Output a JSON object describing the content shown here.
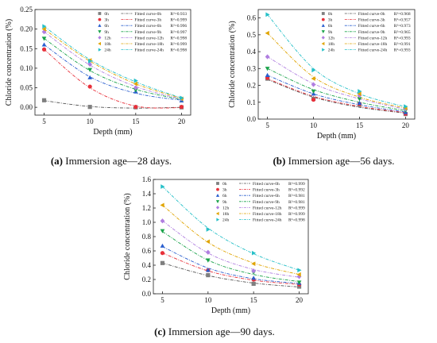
{
  "chart_data": [
    {
      "type": "scatter",
      "caption": {
        "label": "(a)",
        "text": "Immersion age—28 days."
      },
      "xlabel": "Depth (mm)",
      "ylabel": "Chloride concentration (%)",
      "x": [
        5,
        10,
        15,
        20
      ],
      "xlim": [
        4,
        21
      ],
      "ylim": [
        -0.02,
        0.25
      ],
      "yticks": [
        "0.00",
        "0.05",
        "0.10",
        "0.15",
        "0.20",
        "0.25"
      ],
      "yticks_values": [
        0,
        0.05,
        0.1,
        0.15,
        0.2,
        0.25
      ],
      "xticks": [
        "5",
        "10",
        "15",
        "20"
      ],
      "grid": false,
      "legend_position": "top-right",
      "series": [
        {
          "name": "0h",
          "marker": "square",
          "color": "#7f7f7f",
          "values": [
            0.018,
            0.001,
            0.0,
            0.0
          ]
        },
        {
          "name": "3h",
          "marker": "circle",
          "color": "#e8303a",
          "values": [
            0.148,
            0.053,
            0.001,
            0.001
          ]
        },
        {
          "name": "6h",
          "marker": "triangle-up",
          "color": "#2a5fcf",
          "values": [
            0.16,
            0.076,
            0.04,
            0.017
          ]
        },
        {
          "name": "9h",
          "marker": "triangle-down",
          "color": "#1aa34a",
          "values": [
            0.176,
            0.096,
            0.044,
            0.02
          ]
        },
        {
          "name": "12h",
          "marker": "diamond",
          "color": "#b07ee0",
          "values": [
            0.193,
            0.11,
            0.05,
            0.022
          ]
        },
        {
          "name": "18h",
          "marker": "triangle-left",
          "color": "#e0a400",
          "values": [
            0.2,
            0.12,
            0.06,
            0.022
          ]
        },
        {
          "name": "24h",
          "marker": "triangle-right",
          "color": "#26c0c8",
          "values": [
            0.207,
            0.118,
            0.068,
            0.024
          ]
        }
      ],
      "fits": [
        {
          "label": "Fitted curve-0h",
          "r2": "R²=0.933",
          "color": "#555555",
          "values": [
            0.017,
            0.002,
            -0.002,
            0.0
          ]
        },
        {
          "label": "Fitted curve-3h",
          "r2": "R²=0.999",
          "color": "#e8303a",
          "values": [
            0.148,
            0.05,
            0.003,
            -0.001
          ]
        },
        {
          "label": "Fitted curve-6h",
          "r2": "R²=0.996",
          "color": "#2a5fcf",
          "values": [
            0.16,
            0.078,
            0.036,
            0.018
          ]
        },
        {
          "label": "Fitted curve-9h",
          "r2": "R²=0.997",
          "color": "#1aa34a",
          "values": [
            0.176,
            0.094,
            0.046,
            0.02
          ]
        },
        {
          "label": "Fitted curve-12h",
          "r2": "R²=0.998",
          "color": "#b07ee0",
          "values": [
            0.193,
            0.108,
            0.053,
            0.021
          ]
        },
        {
          "label": "Fitted curve-18h",
          "r2": "R²=0.999",
          "color": "#e0a400",
          "values": [
            0.2,
            0.118,
            0.06,
            0.023
          ]
        },
        {
          "label": "Fitted curve-24h",
          "r2": "R²=0.998",
          "color": "#26c0c8",
          "values": [
            0.207,
            0.122,
            0.065,
            0.024
          ]
        }
      ]
    },
    {
      "type": "scatter",
      "caption": {
        "label": "(b)",
        "text": "Immersion age—56 days."
      },
      "xlabel": "Depth (mm)",
      "ylabel": "Chloride concentration (%)",
      "x": [
        5,
        10,
        15,
        20
      ],
      "xlim": [
        4,
        21
      ],
      "ylim": [
        0.0,
        0.65
      ],
      "yticks": [
        "0.0",
        "0.1",
        "0.2",
        "0.3",
        "0.4",
        "0.5",
        "0.6"
      ],
      "yticks_values": [
        0,
        0.1,
        0.2,
        0.3,
        0.4,
        0.5,
        0.6
      ],
      "xticks": [
        "5",
        "10",
        "15",
        "20"
      ],
      "grid": false,
      "legend_position": "top-right",
      "series": [
        {
          "name": "0h",
          "marker": "square",
          "color": "#7f7f7f",
          "values": [
            0.24,
            0.12,
            0.085,
            0.03
          ]
        },
        {
          "name": "3h",
          "marker": "circle",
          "color": "#e8303a",
          "values": [
            0.245,
            0.115,
            0.09,
            0.032
          ]
        },
        {
          "name": "6h",
          "marker": "triangle-up",
          "color": "#2a5fcf",
          "values": [
            0.26,
            0.15,
            0.095,
            0.04
          ]
        },
        {
          "name": "9h",
          "marker": "triangle-down",
          "color": "#1aa34a",
          "values": [
            0.3,
            0.165,
            0.12,
            0.05
          ]
        },
        {
          "name": "12h",
          "marker": "diamond",
          "color": "#b07ee0",
          "values": [
            0.37,
            0.205,
            0.14,
            0.06
          ]
        },
        {
          "name": "18h",
          "marker": "triangle-left",
          "color": "#e0a400",
          "values": [
            0.51,
            0.24,
            0.15,
            0.065
          ]
        },
        {
          "name": "24h",
          "marker": "triangle-right",
          "color": "#26c0c8",
          "values": [
            0.62,
            0.29,
            0.165,
            0.075
          ]
        }
      ],
      "fits": [
        {
          "label": "Fitted curve-0h",
          "r2": "R²=0.968",
          "color": "#555555",
          "values": [
            0.235,
            0.13,
            0.07,
            0.035
          ]
        },
        {
          "label": "Fitted curve-3h",
          "r2": "R²=0.957",
          "color": "#e8303a",
          "values": [
            0.24,
            0.135,
            0.075,
            0.038
          ]
        },
        {
          "label": "Fitted curve-6h",
          "r2": "R²=0.973",
          "color": "#2a5fcf",
          "values": [
            0.26,
            0.15,
            0.085,
            0.042
          ]
        },
        {
          "label": "Fitted curve-9h",
          "r2": "R²=0.965",
          "color": "#1aa34a",
          "values": [
            0.3,
            0.175,
            0.1,
            0.05
          ]
        },
        {
          "label": "Fitted curve-12h",
          "r2": "R²=0.993",
          "color": "#b07ee0",
          "values": [
            0.37,
            0.21,
            0.12,
            0.058
          ]
        },
        {
          "label": "Fitted curve-18h",
          "r2": "R²=0.991",
          "color": "#e0a400",
          "values": [
            0.51,
            0.25,
            0.13,
            0.065
          ]
        },
        {
          "label": "Fitted curve-24h",
          "r2": "R²=0.993",
          "color": "#26c0c8",
          "values": [
            0.62,
            0.3,
            0.15,
            0.073
          ]
        }
      ]
    },
    {
      "type": "scatter",
      "caption": {
        "label": "(c)",
        "text": "Immersion age—90 days."
      },
      "xlabel": "Depth (mm)",
      "ylabel": "Chloride concentration (%)",
      "x": [
        5,
        10,
        15,
        20
      ],
      "xlim": [
        4,
        21
      ],
      "ylim": [
        0.0,
        1.6
      ],
      "yticks": [
        "0.0",
        "0.2",
        "0.4",
        "0.6",
        "0.8",
        "1.0",
        "1.2",
        "1.4",
        "1.6"
      ],
      "yticks_values": [
        0,
        0.2,
        0.4,
        0.6,
        0.8,
        1.0,
        1.2,
        1.4,
        1.6
      ],
      "xticks": [
        "5",
        "10",
        "15",
        "20"
      ],
      "grid": false,
      "legend_position": "top-right",
      "series": [
        {
          "name": "0h",
          "marker": "square",
          "color": "#7f7f7f",
          "values": [
            0.43,
            0.26,
            0.14,
            0.1
          ]
        },
        {
          "name": "3h",
          "marker": "circle",
          "color": "#e8303a",
          "values": [
            0.57,
            0.33,
            0.2,
            0.13
          ]
        },
        {
          "name": "6h",
          "marker": "triangle-up",
          "color": "#2a5fcf",
          "values": [
            0.67,
            0.33,
            0.22,
            0.15
          ]
        },
        {
          "name": "9h",
          "marker": "triangle-down",
          "color": "#1aa34a",
          "values": [
            0.88,
            0.47,
            0.3,
            0.16
          ]
        },
        {
          "name": "12h",
          "marker": "diamond",
          "color": "#b07ee0",
          "values": [
            1.02,
            0.58,
            0.32,
            0.24
          ]
        },
        {
          "name": "18h",
          "marker": "triangle-left",
          "color": "#e0a400",
          "values": [
            1.24,
            0.73,
            0.42,
            0.27
          ]
        },
        {
          "name": "24h",
          "marker": "triangle-right",
          "color": "#26c0c8",
          "values": [
            1.5,
            0.9,
            0.57,
            0.33
          ]
        }
      ],
      "fits": [
        {
          "label": "Fitted curve-0h",
          "r2": "R²=0.999",
          "color": "#555555",
          "values": [
            0.43,
            0.255,
            0.15,
            0.095
          ]
        },
        {
          "label": "Fitted curve-3h",
          "r2": "R²=0.992",
          "color": "#e8303a",
          "values": [
            0.57,
            0.32,
            0.19,
            0.13
          ]
        },
        {
          "label": "Fitted curve-6h",
          "r2": "R²=0.981",
          "color": "#2a5fcf",
          "values": [
            0.66,
            0.36,
            0.21,
            0.145
          ]
        },
        {
          "label": "Fitted curve-9h",
          "r2": "R²=0.981",
          "color": "#1aa34a",
          "values": [
            0.87,
            0.47,
            0.27,
            0.17
          ]
        },
        {
          "label": "Fitted curve-12h",
          "r2": "R²=0.999",
          "color": "#b07ee0",
          "values": [
            1.02,
            0.57,
            0.34,
            0.23
          ]
        },
        {
          "label": "Fitted curve-18h",
          "r2": "R²=0.999",
          "color": "#e0a400",
          "values": [
            1.24,
            0.72,
            0.43,
            0.27
          ]
        },
        {
          "label": "Fitted curve-24h",
          "r2": "R²=0.998",
          "color": "#26c0c8",
          "values": [
            1.5,
            0.92,
            0.56,
            0.33
          ]
        }
      ]
    }
  ]
}
